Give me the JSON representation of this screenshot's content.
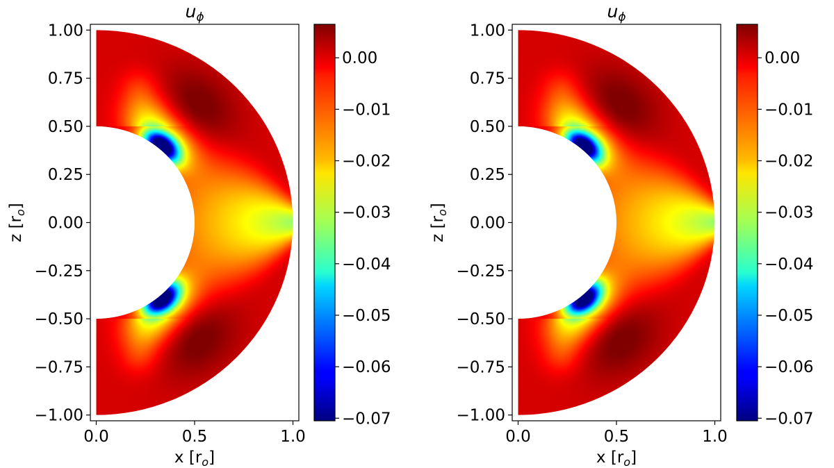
{
  "chart_data": [
    {
      "type": "heatmap",
      "title": "u_ϕ",
      "title_parts": {
        "base": "u",
        "sub": "ϕ"
      },
      "xlabel": "x [r_o]",
      "xlabel_parts": {
        "base": "x [r",
        "sub": "o",
        "end": "]"
      },
      "ylabel": "z [r_o]",
      "ylabel_parts": {
        "base": "z [r",
        "sub": "o",
        "end": "]"
      },
      "xlim": [
        -0.03,
        1.03
      ],
      "ylim": [
        -1.03,
        1.03
      ],
      "xticks": [
        "0.0",
        "0.5",
        "1.0"
      ],
      "xtick_values": [
        0.0,
        0.5,
        1.0
      ],
      "yticks": [
        "1.00",
        "0.75",
        "0.50",
        "0.25",
        "0.00",
        "−0.25",
        "−0.50",
        "−0.75",
        "−1.00"
      ],
      "ytick_values": [
        1.0,
        0.75,
        0.5,
        0.25,
        0.0,
        -0.25,
        -0.5,
        -0.75,
        -1.0
      ],
      "domain": {
        "inner_radius": 0.5,
        "outer_radius": 1.0,
        "shape": "spherical shell meridional half"
      },
      "colorbar": {
        "colormap": "jet",
        "vmin": -0.0705,
        "vmax": 0.0065,
        "ticks": [
          "0.00",
          "−0.01",
          "−0.02",
          "−0.03",
          "−0.04",
          "−0.05",
          "−0.06",
          "−0.07"
        ],
        "tick_values": [
          0.0,
          -0.01,
          -0.02,
          -0.03,
          -0.04,
          -0.05,
          -0.06,
          -0.07
        ]
      },
      "field_features": {
        "min_value": -0.07,
        "min_location": {
          "r": 0.52,
          "theta_deg_from_north": 40
        },
        "max_value": 0.0065,
        "max_location": {
          "r": 0.78,
          "theta_deg_from_north": 40
        },
        "equatorial_value_inner": -0.014,
        "equatorial_value_outer": -0.03,
        "polar_value": 0.0
      }
    },
    {
      "type": "heatmap",
      "title": "u_ϕ",
      "title_parts": {
        "base": "u",
        "sub": "ϕ"
      },
      "xlabel": "x [r_o]",
      "xlabel_parts": {
        "base": "x [r",
        "sub": "o",
        "end": "]"
      },
      "ylabel": "z [r_o]",
      "ylabel_parts": {
        "base": "z [r",
        "sub": "o",
        "end": "]"
      },
      "xlim": [
        -0.03,
        1.03
      ],
      "ylim": [
        -1.03,
        1.03
      ],
      "xticks": [
        "0.0",
        "0.5",
        "1.0"
      ],
      "xtick_values": [
        0.0,
        0.5,
        1.0
      ],
      "yticks": [
        "1.00",
        "0.75",
        "0.50",
        "0.25",
        "0.00",
        "−0.25",
        "−0.50",
        "−0.75",
        "−1.00"
      ],
      "ytick_values": [
        1.0,
        0.75,
        0.5,
        0.25,
        0.0,
        -0.25,
        -0.5,
        -0.75,
        -1.0
      ],
      "domain": {
        "inner_radius": 0.5,
        "outer_radius": 1.0,
        "shape": "spherical shell meridional half"
      },
      "colorbar": {
        "colormap": "jet",
        "vmin": -0.0705,
        "vmax": 0.0065,
        "ticks": [
          "0.00",
          "−0.01",
          "−0.02",
          "−0.03",
          "−0.04",
          "−0.05",
          "−0.06",
          "−0.07"
        ],
        "tick_values": [
          0.0,
          -0.01,
          -0.02,
          -0.03,
          -0.04,
          -0.05,
          -0.06,
          -0.07
        ]
      },
      "field_features": {
        "min_value": -0.068,
        "min_location": {
          "r": 0.52,
          "theta_deg_from_north": 40
        },
        "max_value": 0.0065,
        "max_location": {
          "r": 0.78,
          "theta_deg_from_north": 40
        },
        "equatorial_value_inner": -0.014,
        "equatorial_value_outer": -0.03,
        "polar_value": 0.0
      }
    }
  ]
}
